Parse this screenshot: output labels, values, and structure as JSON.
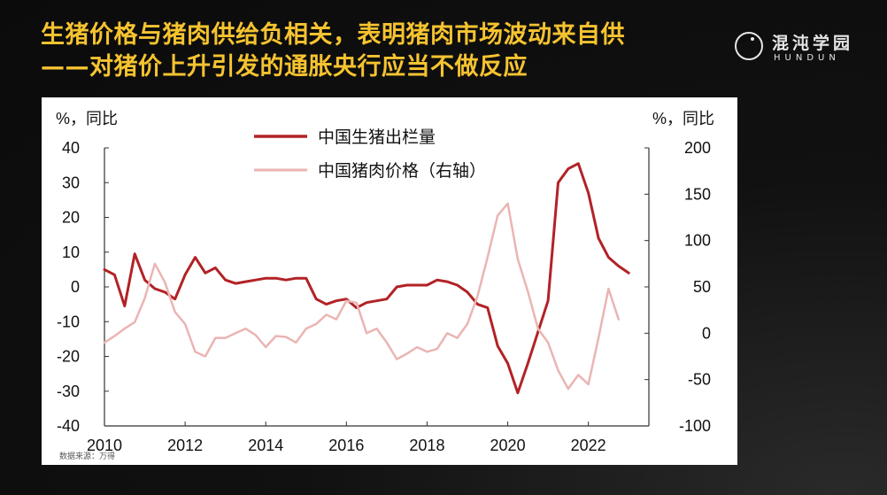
{
  "title_lines": [
    "生猪价格与猪肉供给负相关，表明猪肉市场波动来自供",
    "——对猪价上升引发的通胀央行应当不做反应"
  ],
  "logo": {
    "name_cn": "混沌学园",
    "name_en": "HUNDUN",
    "icon": "hundun-logo-icon"
  },
  "source_note": "数据来源：万得",
  "colors": {
    "title": "#f6c330",
    "series_output": "#b22226",
    "series_price": "#eab5b3"
  },
  "chart_data": {
    "type": "line",
    "left_unit_label": "%，同比",
    "right_unit_label": "%，同比",
    "y_left": {
      "min": -40,
      "max": 40,
      "ticks": [
        40,
        30,
        20,
        10,
        0,
        -10,
        -20,
        -30,
        -40
      ]
    },
    "y_right": {
      "min": -100,
      "max": 200,
      "ticks": [
        200,
        150,
        100,
        50,
        0,
        -50,
        -100
      ]
    },
    "x": {
      "min": 2010,
      "max": 2023.5,
      "ticks": [
        2010,
        2012,
        2014,
        2016,
        2018,
        2020,
        2022
      ]
    },
    "legend_position": "top-center",
    "grid": false,
    "series": [
      {
        "name": "中国生猪出栏量",
        "axis": "left",
        "points": [
          [
            2010.0,
            5.0
          ],
          [
            2010.25,
            3.5
          ],
          [
            2010.5,
            -5.5
          ],
          [
            2010.75,
            9.5
          ],
          [
            2011.0,
            2.0
          ],
          [
            2011.25,
            -0.5
          ],
          [
            2011.5,
            -1.5
          ],
          [
            2011.75,
            -3.5
          ],
          [
            2012.0,
            3.5
          ],
          [
            2012.25,
            8.5
          ],
          [
            2012.5,
            4.0
          ],
          [
            2012.75,
            5.5
          ],
          [
            2013.0,
            2.0
          ],
          [
            2013.25,
            1.0
          ],
          [
            2013.5,
            1.5
          ],
          [
            2013.75,
            2.0
          ],
          [
            2014.0,
            2.5
          ],
          [
            2014.25,
            2.5
          ],
          [
            2014.5,
            2.0
          ],
          [
            2014.75,
            2.5
          ],
          [
            2015.0,
            2.5
          ],
          [
            2015.25,
            -3.5
          ],
          [
            2015.5,
            -5.0
          ],
          [
            2015.75,
            -4.0
          ],
          [
            2016.0,
            -3.5
          ],
          [
            2016.25,
            -6.0
          ],
          [
            2016.5,
            -4.5
          ],
          [
            2016.75,
            -4.0
          ],
          [
            2017.0,
            -3.5
          ],
          [
            2017.25,
            0.0
          ],
          [
            2017.5,
            0.5
          ],
          [
            2017.75,
            0.5
          ],
          [
            2018.0,
            0.5
          ],
          [
            2018.25,
            2.0
          ],
          [
            2018.5,
            1.5
          ],
          [
            2018.75,
            0.5
          ],
          [
            2019.0,
            -1.5
          ],
          [
            2019.25,
            -5.0
          ],
          [
            2019.5,
            -6.0
          ],
          [
            2019.75,
            -17.0
          ],
          [
            2020.0,
            -22.0
          ],
          [
            2020.25,
            -30.5
          ],
          [
            2020.5,
            -22.0
          ],
          [
            2020.75,
            -13.0
          ],
          [
            2021.0,
            -4.0
          ],
          [
            2021.25,
            30.0
          ],
          [
            2021.5,
            34.0
          ],
          [
            2021.75,
            35.5
          ],
          [
            2022.0,
            27.0
          ],
          [
            2022.25,
            14.0
          ],
          [
            2022.5,
            8.5
          ],
          [
            2022.75,
            6.0
          ],
          [
            2023.0,
            4.0
          ]
        ]
      },
      {
        "name": "中国猪肉价格（右轴）",
        "axis": "right",
        "points": [
          [
            2010.0,
            -10.0
          ],
          [
            2010.25,
            -3.0
          ],
          [
            2010.5,
            5.0
          ],
          [
            2010.75,
            12.0
          ],
          [
            2011.0,
            38.0
          ],
          [
            2011.25,
            75.0
          ],
          [
            2011.5,
            55.0
          ],
          [
            2011.75,
            23.0
          ],
          [
            2012.0,
            10.0
          ],
          [
            2012.25,
            -20.0
          ],
          [
            2012.5,
            -25.0
          ],
          [
            2012.75,
            -5.0
          ],
          [
            2013.0,
            -5.0
          ],
          [
            2013.25,
            0.0
          ],
          [
            2013.5,
            5.0
          ],
          [
            2013.75,
            -2.0
          ],
          [
            2014.0,
            -15.0
          ],
          [
            2014.25,
            -3.0
          ],
          [
            2014.5,
            -4.0
          ],
          [
            2014.75,
            -10.0
          ],
          [
            2015.0,
            5.0
          ],
          [
            2015.25,
            10.0
          ],
          [
            2015.5,
            20.0
          ],
          [
            2015.75,
            15.0
          ],
          [
            2016.0,
            35.0
          ],
          [
            2016.25,
            33.0
          ],
          [
            2016.5,
            0.0
          ],
          [
            2016.75,
            5.0
          ],
          [
            2017.0,
            -10.0
          ],
          [
            2017.25,
            -28.0
          ],
          [
            2017.5,
            -22.0
          ],
          [
            2017.75,
            -15.0
          ],
          [
            2018.0,
            -20.0
          ],
          [
            2018.25,
            -17.0
          ],
          [
            2018.5,
            0.0
          ],
          [
            2018.75,
            -5.0
          ],
          [
            2019.0,
            10.0
          ],
          [
            2019.25,
            40.0
          ],
          [
            2019.5,
            82.0
          ],
          [
            2019.75,
            127.0
          ],
          [
            2020.0,
            140.0
          ],
          [
            2020.25,
            80.0
          ],
          [
            2020.5,
            45.0
          ],
          [
            2020.75,
            5.0
          ],
          [
            2021.0,
            -10.0
          ],
          [
            2021.25,
            -40.0
          ],
          [
            2021.5,
            -60.0
          ],
          [
            2021.75,
            -45.0
          ],
          [
            2022.0,
            -55.0
          ],
          [
            2022.25,
            -5.0
          ],
          [
            2022.5,
            48.0
          ],
          [
            2022.75,
            15.0
          ]
        ]
      }
    ]
  }
}
